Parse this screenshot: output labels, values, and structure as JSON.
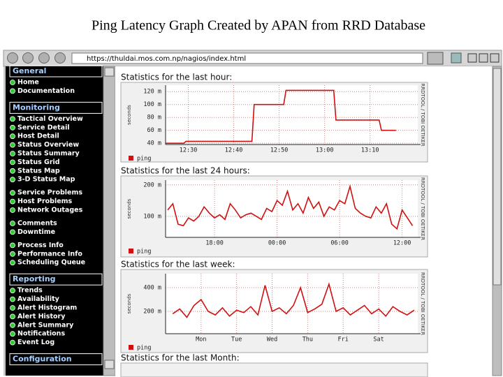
{
  "slide_title": "Ping Latency Graph Created by APAN from RRD Database",
  "browser": {
    "url": "https://thuldai.mos.com.np/nagios/index.html"
  },
  "sidebar": [
    {
      "title": "General",
      "groups": [
        [
          "Home",
          "Documentation"
        ]
      ]
    },
    {
      "title": "Monitoring",
      "groups": [
        [
          "Tactical Overview",
          "Service Detail",
          "Host Detail",
          "Status Overview",
          "Status Summary",
          "Status Grid",
          "Status Map",
          "3-D Status Map"
        ],
        [
          "Service Problems",
          "Host Problems",
          "Network Outages"
        ],
        [
          "Comments",
          "Downtime"
        ],
        [
          "Process Info",
          "Performance Info",
          "Scheduling Queue"
        ]
      ]
    },
    {
      "title": "Reporting",
      "groups": [
        [
          "Trends",
          "Availability",
          "Alert Histogram",
          "Alert History",
          "Alert Summary",
          "Notifications",
          "Event Log"
        ]
      ]
    },
    {
      "title": "Configuration",
      "groups": []
    }
  ],
  "chart_data": [
    {
      "type": "line",
      "title": "Statistics for the last hour:",
      "y_label": "seconds",
      "watermark": "RRDTOOL / TOBI OETIKER",
      "grid": true,
      "x": [
        25,
        29,
        29.5,
        44,
        44.5,
        51,
        51.5,
        62,
        62.5,
        72,
        72.5,
        75.7
      ],
      "series": [
        {
          "name": "ping",
          "color": "#d01010",
          "values": [
            40,
            40,
            43,
            43,
            100,
            100,
            122,
            122,
            76,
            76,
            60,
            60
          ]
        }
      ],
      "xlim": [
        25,
        80.5
      ],
      "ylim": [
        38,
        130
      ],
      "xticks": [
        {
          "value": 30,
          "label": "12:30"
        },
        {
          "value": 40,
          "label": "12:40"
        },
        {
          "value": 50,
          "label": "12:50"
        },
        {
          "value": 60,
          "label": "13:00"
        },
        {
          "value": 70,
          "label": "13:10"
        }
      ],
      "yticks": [
        {
          "value": 40,
          "label": "40 m"
        },
        {
          "value": 60,
          "label": "60 m"
        },
        {
          "value": 80,
          "label": "80 m"
        },
        {
          "value": 100,
          "label": "100 m"
        },
        {
          "value": 120,
          "label": "120 m"
        }
      ]
    },
    {
      "type": "line",
      "title": "Statistics for the last 24 hours:",
      "y_label": "seconds",
      "watermark": "RRDTOOL / TOBI OETIKER",
      "grid": true,
      "x": [
        13.5,
        14,
        14.5,
        15,
        15.5,
        16,
        16.5,
        17,
        17.5,
        18,
        18.5,
        19,
        19.5,
        20,
        20.5,
        21,
        21.5,
        22,
        22.5,
        23,
        23.5,
        24,
        24.5,
        25,
        25.5,
        26,
        26.5,
        27,
        27.5,
        28,
        28.5,
        29,
        29.5,
        30,
        30.5,
        31,
        31.5,
        32,
        32.5,
        33,
        33.5,
        34,
        34.5,
        35,
        35.5,
        36,
        36.5,
        37
      ],
      "series": [
        {
          "name": "ping",
          "color": "#d01010",
          "values": [
            120,
            140,
            75,
            70,
            95,
            85,
            100,
            130,
            110,
            95,
            105,
            90,
            140,
            120,
            95,
            105,
            110,
            100,
            90,
            125,
            115,
            150,
            135,
            180,
            120,
            140,
            110,
            160,
            125,
            145,
            100,
            130,
            120,
            150,
            140,
            195,
            125,
            110,
            100,
            95,
            130,
            110,
            140,
            75,
            60,
            120,
            95,
            70
          ]
        }
      ],
      "xlim": [
        13.3,
        37.5
      ],
      "ylim": [
        33,
        215
      ],
      "xticks": [
        {
          "value": 18,
          "label": "18:00"
        },
        {
          "value": 24,
          "label": "00:00"
        },
        {
          "value": 30,
          "label": "06:00"
        },
        {
          "value": 36,
          "label": "12:00"
        }
      ],
      "yticks": [
        {
          "value": 100,
          "label": "100 m"
        },
        {
          "value": 200,
          "label": "200 m"
        }
      ]
    },
    {
      "type": "line",
      "title": "Statistics for the last week:",
      "y_label": "seconds",
      "watermark": "RRDTOOL / TOBI OETIKER",
      "grid": true,
      "x": [
        0.2,
        0.4,
        0.6,
        0.8,
        1.0,
        1.2,
        1.4,
        1.6,
        1.8,
        2.0,
        2.2,
        2.4,
        2.6,
        2.8,
        3.0,
        3.2,
        3.4,
        3.6,
        3.8,
        4.0,
        4.2,
        4.4,
        4.6,
        4.8,
        5.0,
        5.2,
        5.4,
        5.6,
        5.8,
        6.0,
        6.2,
        6.4,
        6.6,
        6.8,
        7.0
      ],
      "series": [
        {
          "name": "ping",
          "color": "#d01010",
          "values": [
            180,
            220,
            150,
            250,
            300,
            200,
            170,
            230,
            160,
            210,
            190,
            240,
            170,
            420,
            200,
            230,
            180,
            250,
            400,
            190,
            220,
            260,
            430,
            200,
            230,
            170,
            210,
            250,
            180,
            220,
            160,
            240,
            200,
            170,
            210
          ]
        }
      ],
      "xlim": [
        0,
        7.1
      ],
      "ylim": [
        12,
        518
      ],
      "xticks": [
        {
          "value": 1,
          "label": "Mon"
        },
        {
          "value": 2,
          "label": "Tue"
        },
        {
          "value": 3,
          "label": "Wed"
        },
        {
          "value": 4,
          "label": "Thu"
        },
        {
          "value": 5,
          "label": "Fri"
        },
        {
          "value": 6,
          "label": "Sat"
        }
      ],
      "yticks": [
        {
          "value": 200,
          "label": "200 m"
        },
        {
          "value": 400,
          "label": "400 m"
        }
      ]
    }
  ],
  "next_heading": "Statistics for the last Month:"
}
